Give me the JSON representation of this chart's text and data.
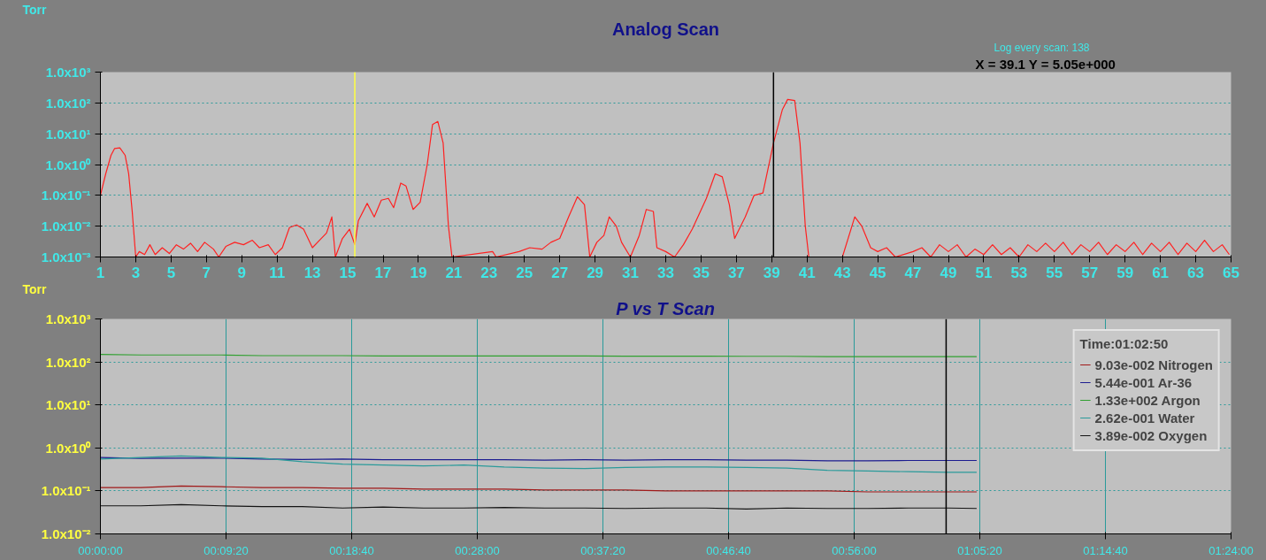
{
  "chart_data": [
    {
      "type": "line",
      "title": "Analog Scan",
      "ylabel": "Torr",
      "annotations": [
        "Log every scan: 138",
        "X = 39.1 Y = 5.05e+000"
      ],
      "log": true,
      "grid": "y",
      "legend": false,
      "xlim": [
        1,
        65
      ],
      "xticks": [
        1,
        3,
        5,
        7,
        9,
        11,
        13,
        15,
        17,
        19,
        21,
        23,
        25,
        27,
        29,
        31,
        33,
        35,
        37,
        39,
        41,
        43,
        45,
        47,
        49,
        51,
        53,
        55,
        57,
        59,
        61,
        63,
        65
      ],
      "ylim": [
        0.001,
        1000
      ],
      "yticks": [
        {
          "value": 0.001,
          "label": "1.0x10⁻³"
        },
        {
          "value": 0.01,
          "label": "1.0x10⁻²"
        },
        {
          "value": 0.1,
          "label": "1.0x10⁻¹"
        },
        {
          "value": 1,
          "label": "1.0x10⁰"
        },
        {
          "value": 10,
          "label": "1.0x10¹"
        },
        {
          "value": 100,
          "label": "1.0x10²"
        },
        {
          "value": 1000,
          "label": "1.0x10³"
        }
      ],
      "ref_lines": [
        {
          "axis": "x",
          "value": 15.4,
          "color": "#ffff40"
        },
        {
          "axis": "x",
          "value": 39.1,
          "color": "#000000"
        }
      ],
      "series": [
        {
          "color": "#ff2020",
          "x": [
            1.0,
            1.3,
            1.6,
            1.8,
            2.1,
            2.4,
            2.6,
            2.8,
            3.0,
            3.2,
            3.5,
            3.8,
            4.1,
            4.5,
            4.9,
            5.3,
            5.7,
            6.1,
            6.5,
            6.9,
            7.4,
            7.7,
            8.1,
            8.6,
            9.1,
            9.6,
            10.0,
            10.5,
            10.9,
            11.3,
            11.7,
            12.1,
            12.5,
            13.0,
            13.4,
            13.8,
            14.1,
            14.3,
            14.7,
            15.1,
            15.4,
            15.6,
            16.1,
            16.5,
            16.9,
            17.3,
            17.6,
            18.0,
            18.3,
            18.7,
            19.1,
            19.5,
            19.8,
            20.1,
            20.4,
            20.7,
            20.9,
            23.2,
            23.4,
            24.7,
            25.3,
            26.0,
            26.5,
            27.0,
            27.5,
            28.0,
            28.4,
            28.7,
            29.1,
            29.5,
            29.8,
            30.2,
            30.5,
            31.0,
            31.5,
            31.9,
            32.3,
            32.5,
            33.0,
            33.5,
            34.0,
            34.5,
            35.3,
            35.8,
            36.2,
            36.6,
            36.9,
            37.5,
            38.0,
            38.5,
            39.1,
            39.6,
            39.9,
            40.3,
            40.6,
            40.9,
            41.1,
            43.0,
            43.7,
            44.1,
            44.6,
            45.0,
            45.5,
            46.0,
            47.0,
            47.5,
            48.0,
            48.5,
            49.0,
            49.5,
            50.0,
            50.5,
            51.0,
            51.5,
            52.0,
            52.5,
            53.0,
            53.5,
            54.0,
            54.5,
            55.0,
            55.5,
            56.0,
            56.5,
            57.0,
            57.5,
            58.0,
            58.5,
            59.0,
            59.5,
            60.0,
            60.5,
            61.0,
            61.5,
            62.0,
            62.5,
            63.0,
            63.5,
            64.0,
            64.5,
            64.9
          ],
          "values": [
            0.1,
            0.5,
            2,
            3.3,
            3.5,
            2,
            0.5,
            0.03,
            0.001,
            0.0015,
            0.0012,
            0.0025,
            0.0012,
            0.002,
            0.0013,
            0.0025,
            0.0018,
            0.0028,
            0.0015,
            0.003,
            0.0018,
            0.001,
            0.0022,
            0.003,
            0.0025,
            0.0035,
            0.002,
            0.0025,
            0.0012,
            0.002,
            0.009,
            0.011,
            0.008,
            0.002,
            0.0035,
            0.006,
            0.02,
            0.001,
            0.004,
            0.008,
            0.0025,
            0.015,
            0.055,
            0.02,
            0.07,
            0.08,
            0.04,
            0.25,
            0.2,
            0.035,
            0.06,
            1,
            20,
            25,
            5,
            0.01,
            0.001,
            0.0015,
            0.001,
            0.0015,
            0.002,
            0.0018,
            0.003,
            0.004,
            0.02,
            0.09,
            0.05,
            0.001,
            0.003,
            0.005,
            0.02,
            0.01,
            0.003,
            0.001,
            0.005,
            0.035,
            0.03,
            0.002,
            0.0015,
            0.001,
            0.0025,
            0.008,
            0.08,
            0.5,
            0.4,
            0.05,
            0.004,
            0.02,
            0.1,
            0.12,
            5,
            60,
            130,
            120,
            5,
            0.01,
            0.001,
            0.001,
            0.02,
            0.01,
            0.002,
            0.0015,
            0.002,
            0.001,
            0.0015,
            0.002,
            0.001,
            0.0025,
            0.0015,
            0.0025,
            0.001,
            0.0018,
            0.0012,
            0.0025,
            0.0012,
            0.002,
            0.001,
            0.0025,
            0.0015,
            0.0028,
            0.0015,
            0.003,
            0.0012,
            0.0025,
            0.0015,
            0.003,
            0.0012,
            0.0025,
            0.0015,
            0.003,
            0.0012,
            0.0028,
            0.0015,
            0.003,
            0.0012,
            0.0028,
            0.0015,
            0.0035,
            0.0015,
            0.0025,
            0.0012
          ]
        }
      ]
    },
    {
      "type": "line",
      "title": "P vs T Scan",
      "ylabel": "Torr",
      "legend_title": "Time:01:02:50",
      "log": true,
      "grid": true,
      "legend": "top right",
      "xlim": [
        0,
        1.4
      ],
      "xticks": [
        {
          "value": 0,
          "label": "00:00:00"
        },
        {
          "value": 0.15556,
          "label": "00:09:20"
        },
        {
          "value": 0.31111,
          "label": "00:18:40"
        },
        {
          "value": 0.46667,
          "label": "00:28:00"
        },
        {
          "value": 0.62222,
          "label": "00:37:20"
        },
        {
          "value": 0.77778,
          "label": "00:46:40"
        },
        {
          "value": 0.93333,
          "label": "00:56:00"
        },
        {
          "value": 1.08889,
          "label": "01:05:20"
        },
        {
          "value": 1.24444,
          "label": "01:14:40"
        },
        {
          "value": 1.4,
          "label": "01:24:00"
        }
      ],
      "ylim": [
        0.01,
        1000
      ],
      "yticks": [
        {
          "value": 0.01,
          "label": "1.0x10⁻²"
        },
        {
          "value": 0.1,
          "label": "1.0x10⁻¹"
        },
        {
          "value": 1,
          "label": "1.0x10⁰"
        },
        {
          "value": 10,
          "label": "1.0x10¹"
        },
        {
          "value": 100,
          "label": "1.0x10²"
        },
        {
          "value": 1000,
          "label": "1.0x10³"
        }
      ],
      "ref_lines": [
        {
          "axis": "x",
          "value": 1.0472,
          "color": "#000000"
        }
      ],
      "x": [
        0,
        0.05,
        0.1,
        0.15,
        0.2,
        0.25,
        0.3,
        0.35,
        0.4,
        0.45,
        0.5,
        0.55,
        0.6,
        0.65,
        0.7,
        0.75,
        0.8,
        0.85,
        0.9,
        0.95,
        1.0,
        1.05,
        1.085
      ],
      "series": [
        {
          "name": "9.03e-002 Nitrogen",
          "color": "#a01818",
          "values": [
            0.12,
            0.12,
            0.13,
            0.125,
            0.12,
            0.12,
            0.115,
            0.115,
            0.11,
            0.11,
            0.11,
            0.105,
            0.105,
            0.105,
            0.1,
            0.1,
            0.1,
            0.1,
            0.1,
            0.095,
            0.095,
            0.095,
            0.095
          ]
        },
        {
          "name": "5.44e-001 Ar-36",
          "color": "#1c1c90",
          "values": [
            0.6,
            0.57,
            0.58,
            0.58,
            0.55,
            0.54,
            0.55,
            0.53,
            0.53,
            0.53,
            0.53,
            0.52,
            0.53,
            0.52,
            0.53,
            0.53,
            0.52,
            0.52,
            0.5,
            0.5,
            0.51,
            0.51,
            0.51
          ]
        },
        {
          "name": "1.33e+002 Argon",
          "color": "#30a030",
          "values": [
            150,
            145,
            145,
            145,
            140,
            140,
            140,
            138,
            138,
            138,
            138,
            138,
            138,
            136,
            136,
            136,
            135,
            135,
            133,
            133,
            133,
            133,
            133
          ]
        },
        {
          "name": "2.62e-001 Water",
          "color": "#2a9a9a",
          "values": [
            0.55,
            0.6,
            0.65,
            0.6,
            0.58,
            0.48,
            0.42,
            0.4,
            0.38,
            0.4,
            0.36,
            0.34,
            0.33,
            0.35,
            0.36,
            0.36,
            0.35,
            0.34,
            0.3,
            0.29,
            0.28,
            0.27,
            0.27
          ]
        },
        {
          "name": "3.89e-002 Oxygen",
          "color": "#141414",
          "values": [
            0.045,
            0.045,
            0.048,
            0.045,
            0.043,
            0.043,
            0.04,
            0.042,
            0.04,
            0.04,
            0.041,
            0.04,
            0.04,
            0.039,
            0.04,
            0.04,
            0.038,
            0.04,
            0.039,
            0.039,
            0.04,
            0.04,
            0.039
          ]
        }
      ]
    }
  ]
}
